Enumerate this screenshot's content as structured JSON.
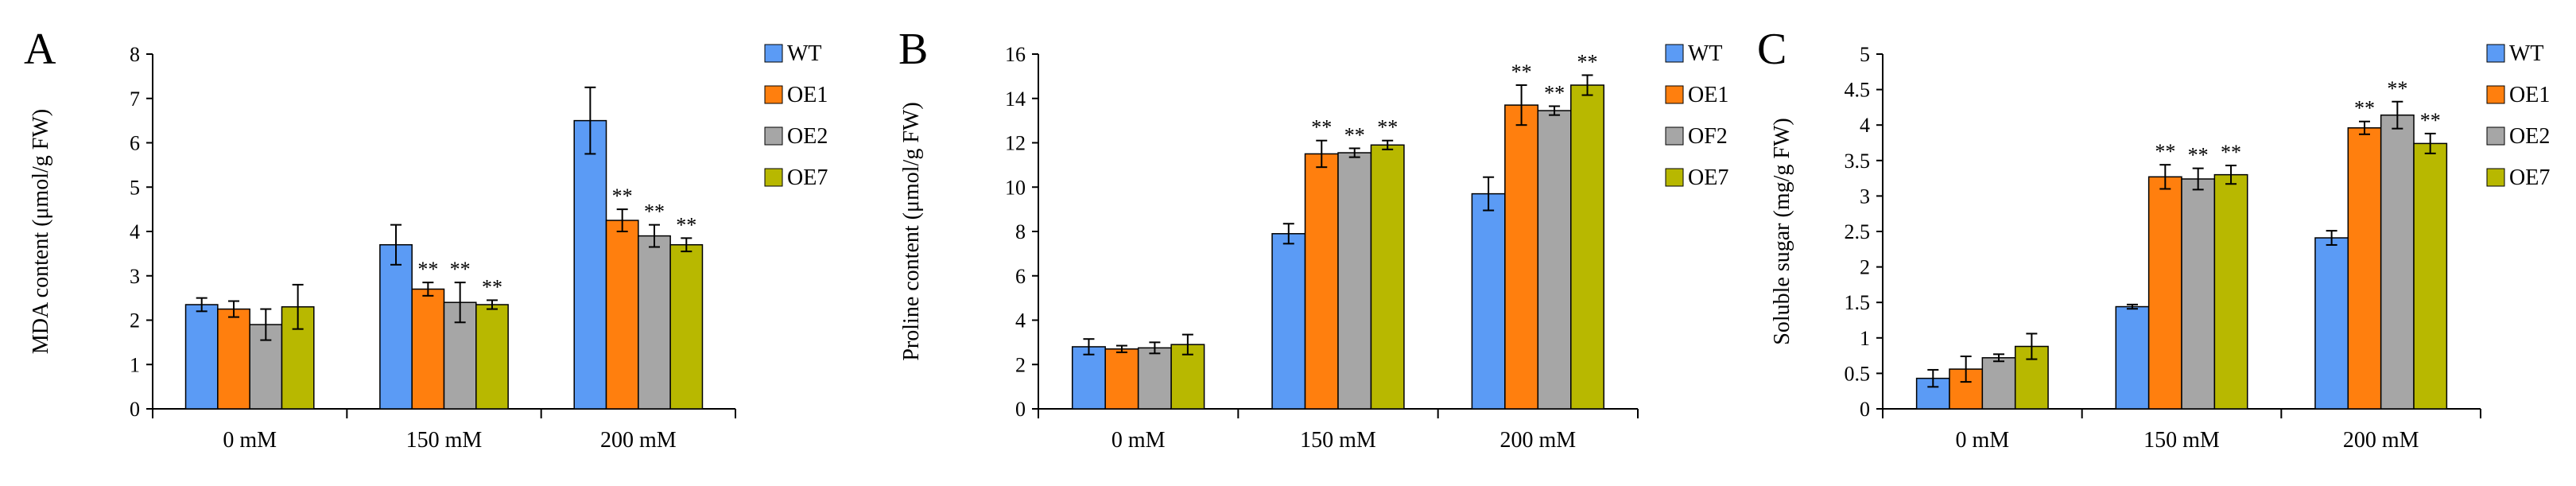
{
  "chart_data": [
    {
      "type": "bar",
      "panel_label": "A",
      "categories": [
        "0 mM",
        "150 mM",
        "200 mM"
      ],
      "series": [
        {
          "name": "WT",
          "color": "#5b9bf5",
          "values": [
            2.35,
            3.7,
            6.5
          ],
          "errors": [
            0.15,
            0.45,
            0.75
          ],
          "sig": [
            "",
            "",
            ""
          ]
        },
        {
          "name": "OE1",
          "color": "#ff7f0e",
          "values": [
            2.25,
            2.7,
            4.25
          ],
          "errors": [
            0.18,
            0.15,
            0.25
          ],
          "sig": [
            "",
            "**",
            "**"
          ]
        },
        {
          "name": "OE2",
          "color": "#a6a6a6",
          "values": [
            1.9,
            2.4,
            3.9
          ],
          "errors": [
            0.35,
            0.45,
            0.25
          ],
          "sig": [
            "",
            "**",
            "**"
          ]
        },
        {
          "name": "OE7",
          "color": "#b8b800",
          "values": [
            2.3,
            2.35,
            3.7
          ],
          "errors": [
            0.5,
            0.1,
            0.15
          ],
          "sig": [
            "",
            "**",
            "**"
          ]
        }
      ],
      "ylabel": "MDA  content (μmol/g  FW)",
      "ylim": [
        0,
        8
      ],
      "yticks": [
        "0",
        "1",
        "2",
        "3",
        "4",
        "5",
        "6",
        "7",
        "8"
      ],
      "legend_position": "top-right"
    },
    {
      "type": "bar",
      "panel_label": "B",
      "categories": [
        "0 mM",
        "150 mM",
        "200 mM"
      ],
      "series": [
        {
          "name": "WT",
          "color": "#5b9bf5",
          "values": [
            2.8,
            7.9,
            9.7
          ],
          "errors": [
            0.35,
            0.45,
            0.75
          ],
          "sig": [
            "",
            "",
            ""
          ]
        },
        {
          "name": "OE1",
          "color": "#ff7f0e",
          "values": [
            2.7,
            11.5,
            13.7
          ],
          "errors": [
            0.15,
            0.6,
            0.9
          ],
          "sig": [
            "",
            "**",
            "**"
          ]
        },
        {
          "name": "OF2",
          "color": "#a6a6a6",
          "values": [
            2.75,
            11.55,
            13.45
          ],
          "errors": [
            0.25,
            0.2,
            0.2
          ],
          "sig": [
            "",
            "**",
            "**"
          ]
        },
        {
          "name": "OE7",
          "color": "#b8b800",
          "values": [
            2.9,
            11.9,
            14.6
          ],
          "errors": [
            0.45,
            0.2,
            0.45
          ],
          "sig": [
            "",
            "**",
            "**"
          ]
        }
      ],
      "ylabel": "Proline  content (μmol/g  FW)",
      "ylim": [
        0,
        16
      ],
      "yticks": [
        "0",
        "2",
        "4",
        "6",
        "8",
        "10",
        "12",
        "14",
        "16"
      ],
      "legend_position": "top-right"
    },
    {
      "type": "bar",
      "panel_label": "C",
      "categories": [
        "0 mM",
        "150 mM",
        "200 mM"
      ],
      "series": [
        {
          "name": "WT",
          "color": "#5b9bf5",
          "values": [
            0.43,
            1.44,
            2.41
          ],
          "errors": [
            0.12,
            0.03,
            0.1
          ],
          "sig": [
            "",
            "",
            ""
          ]
        },
        {
          "name": "OE1",
          "color": "#ff7f0e",
          "values": [
            0.56,
            3.27,
            3.96
          ],
          "errors": [
            0.18,
            0.17,
            0.09
          ],
          "sig": [
            "",
            "**",
            "**"
          ]
        },
        {
          "name": "OE2",
          "color": "#a6a6a6",
          "values": [
            0.72,
            3.24,
            4.14
          ],
          "errors": [
            0.05,
            0.15,
            0.19
          ],
          "sig": [
            "",
            "**",
            "**"
          ]
        },
        {
          "name": "OE7",
          "color": "#b8b800",
          "values": [
            0.88,
            3.3,
            3.74
          ],
          "errors": [
            0.18,
            0.13,
            0.14
          ],
          "sig": [
            "",
            "**",
            "**"
          ]
        }
      ],
      "ylabel": "Soluble  sugar (mg/g  FW)",
      "ylim": [
        0,
        5
      ],
      "yticks": [
        "0",
        "0.5",
        "1",
        "1.5",
        "2",
        "2.5",
        "3",
        "3.5",
        "4",
        "4.5",
        "5"
      ],
      "legend_position": "top-right"
    }
  ]
}
